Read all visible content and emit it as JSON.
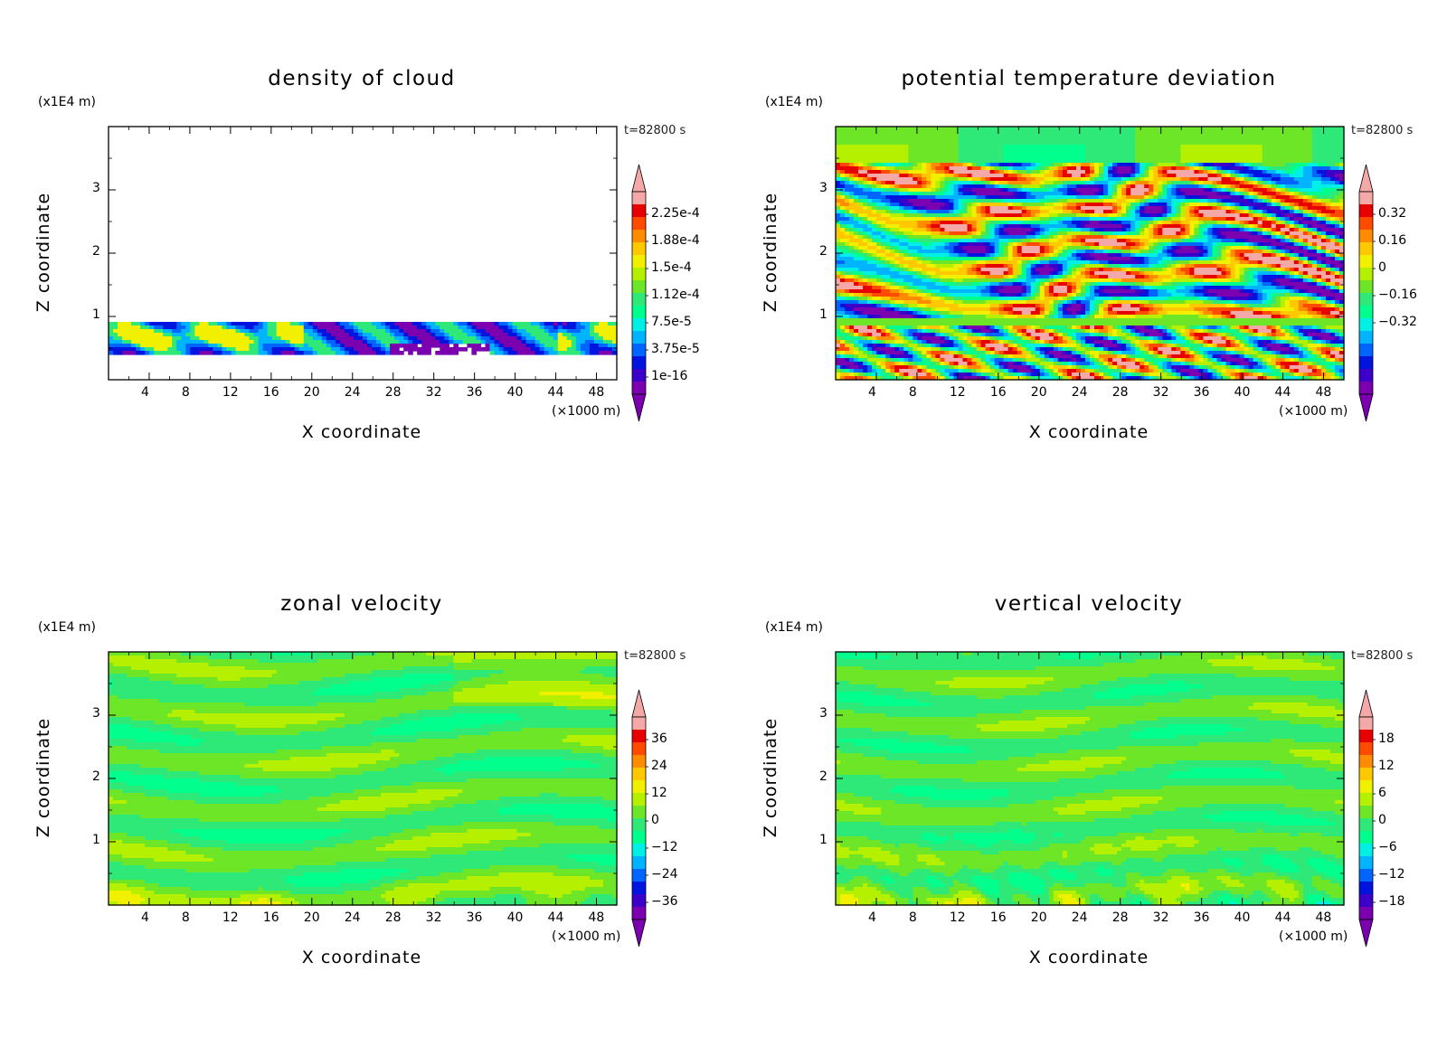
{
  "chart_data": [
    {
      "type": "heatmap",
      "title": "density of cloud",
      "xlabel": "X coordinate",
      "ylabel": "Z coordinate",
      "x_unit": "(×1000 m)",
      "y_unit": "(x1E4 m)",
      "time": "t=82800 s",
      "xlim": [
        0,
        50
      ],
      "ylim": [
        0,
        4
      ],
      "x_ticks": [
        4,
        8,
        12,
        16,
        20,
        24,
        28,
        32,
        36,
        40,
        44,
        48
      ],
      "y_ticks": [
        1,
        2,
        3
      ],
      "colorbar_labels": [
        "2.25e-4",
        "1.88e-4",
        "1.5e-4",
        "1.12e-4",
        "7.5e-5",
        "3.75e-5",
        "1e-16"
      ],
      "field": "cloud",
      "background": "#ffffff"
    },
    {
      "type": "heatmap",
      "title": "potential temperature deviation",
      "xlabel": "X coordinate",
      "ylabel": "Z coordinate",
      "x_unit": "(×1000 m)",
      "y_unit": "(x1E4 m)",
      "time": "t=82800 s",
      "xlim": [
        0,
        50
      ],
      "ylim": [
        0,
        4
      ],
      "x_ticks": [
        4,
        8,
        12,
        16,
        20,
        24,
        28,
        32,
        36,
        40,
        44,
        48
      ],
      "y_ticks": [
        1,
        2,
        3
      ],
      "colorbar_labels": [
        "0.32",
        "0.16",
        "0",
        "−0.16",
        "−0.32"
      ],
      "field": "theta",
      "background": "#32f07a"
    },
    {
      "type": "heatmap",
      "title": "zonal velocity",
      "xlabel": "X coordinate",
      "ylabel": "Z coordinate",
      "x_unit": "(×1000 m)",
      "y_unit": "(x1E4 m)",
      "time": "t=82800 s",
      "xlim": [
        0,
        50
      ],
      "ylim": [
        0,
        4
      ],
      "x_ticks": [
        4,
        8,
        12,
        16,
        20,
        24,
        28,
        32,
        36,
        40,
        44,
        48
      ],
      "y_ticks": [
        1,
        2,
        3
      ],
      "colorbar_labels": [
        "36",
        "24",
        "12",
        "0",
        "−12",
        "−24",
        "−36"
      ],
      "field": "u",
      "background": "#2ee878"
    },
    {
      "type": "heatmap",
      "title": "vertical velocity",
      "xlabel": "X coordinate",
      "ylabel": "Z coordinate",
      "x_unit": "(×1000 m)",
      "y_unit": "(x1E4 m)",
      "time": "t=82800 s",
      "xlim": [
        0,
        50
      ],
      "ylim": [
        0,
        4
      ],
      "x_ticks": [
        4,
        8,
        12,
        16,
        20,
        24,
        28,
        32,
        36,
        40,
        44,
        48
      ],
      "y_ticks": [
        1,
        2,
        3
      ],
      "colorbar_labels": [
        "18",
        "12",
        "6",
        "0",
        "−6",
        "−12",
        "−18"
      ],
      "field": "w",
      "background": "#2ef07e"
    }
  ],
  "colorbar_colors": [
    "#7a00b0",
    "#3c00c8",
    "#0014e0",
    "#0064ff",
    "#00b4ff",
    "#00f0e6",
    "#00ff8c",
    "#2ee878",
    "#6ee628",
    "#b4f000",
    "#f0f000",
    "#ffc800",
    "#ff8c00",
    "#ff4b00",
    "#e60000",
    "#f5a8a8"
  ]
}
